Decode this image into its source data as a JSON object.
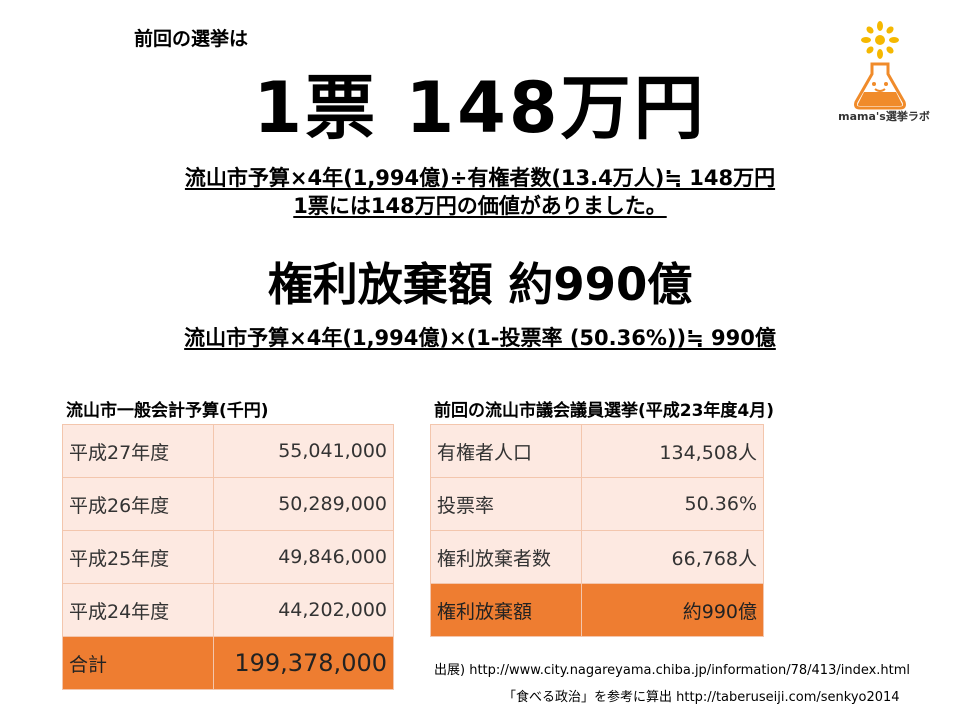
{
  "intro": "前回の選挙は",
  "headline": "1票 148万円",
  "formula1": "流山市予算×4年(1,994億)÷有権者数(13.4万人)≒ 148万円",
  "formula2": "1票には148万円の価値がありました。",
  "headline2": "権利放棄額 約990億",
  "formula3": "流山市予算×4年(1,994億)×(1-投票率 (50.36%))≒ 990億",
  "logo": {
    "text": "mama's選挙ラボ",
    "icon": "flask-sun-icon"
  },
  "budget_table": {
    "title": "流山市一般会計予算(千円)",
    "rows": [
      {
        "label": "平成27年度",
        "value": "55,041,000"
      },
      {
        "label": "平成26年度",
        "value": "50,289,000"
      },
      {
        "label": "平成25年度",
        "value": "49,846,000"
      },
      {
        "label": "平成24年度",
        "value": "44,202,000"
      }
    ],
    "total": {
      "label": "合計",
      "value": "199,378,000"
    }
  },
  "election_table": {
    "title": "前回の流山市議会議員選挙(平成23年度4月)",
    "rows": [
      {
        "label": "有権者人口",
        "value": "134,508人"
      },
      {
        "label": "投票率",
        "value": "50.36%"
      },
      {
        "label": "権利放棄者数",
        "value": "66,768人"
      }
    ],
    "total": {
      "label": "権利放棄額",
      "value": "約990億"
    }
  },
  "source_note": "出展) http://www.city.nagareyama.chiba.jp/information/78/413/index.html",
  "calc_note": "「食べる政治」を参考に算出 http://taberuseiji.com/senkyo2014",
  "colors": {
    "accent": "#ee7d31",
    "cell": "#fde9e1",
    "logo_yellow": "#f5b800"
  }
}
